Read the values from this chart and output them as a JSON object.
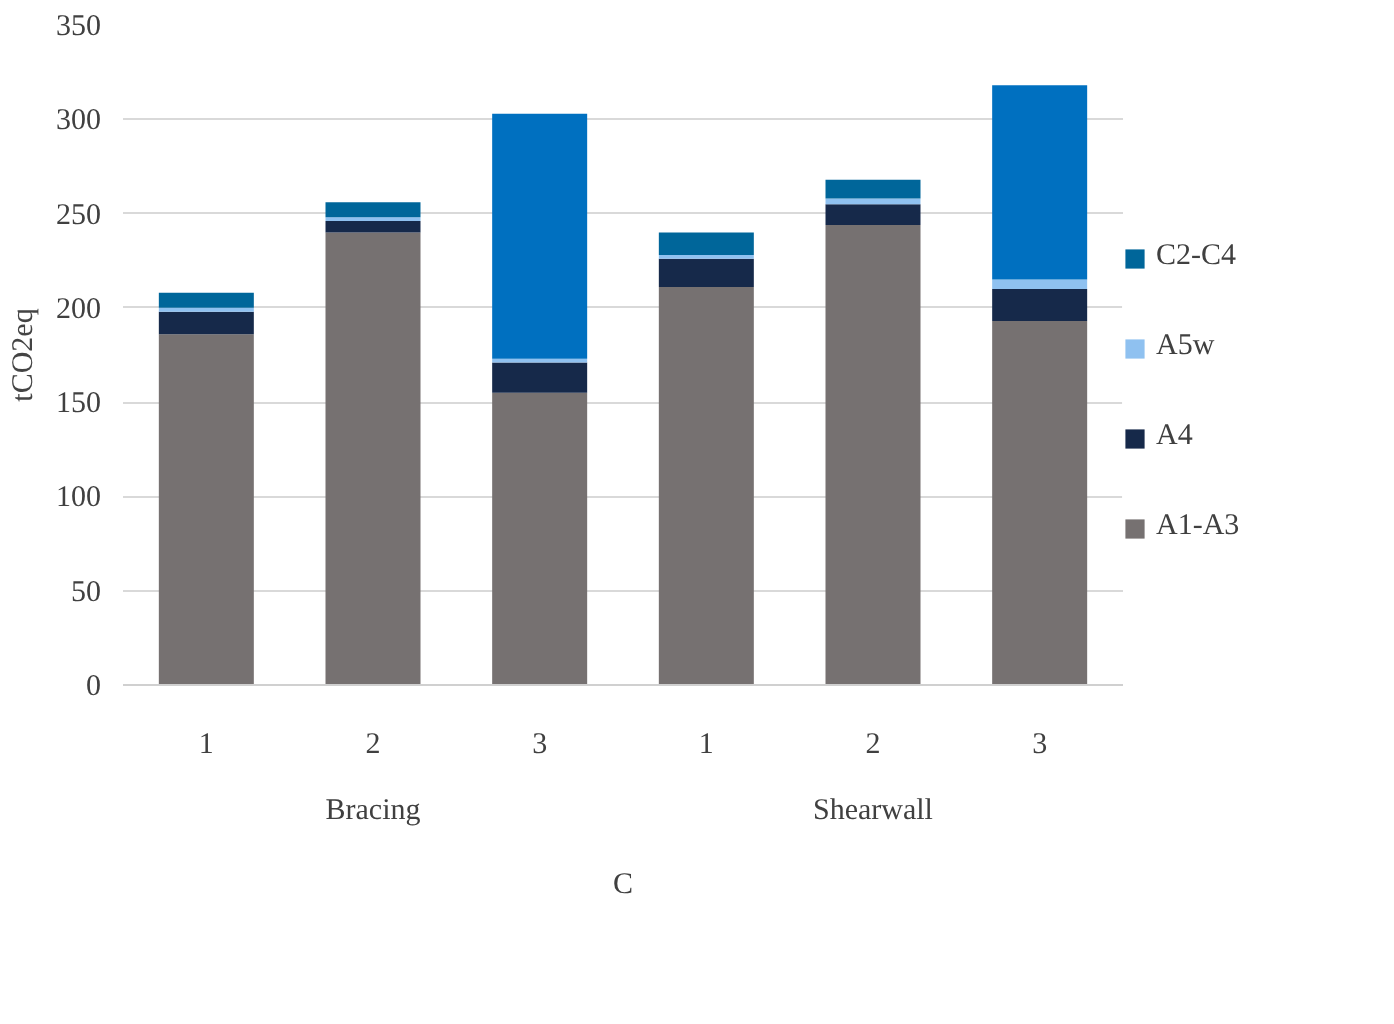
{
  "chart_data": {
    "type": "bar",
    "stacked": true,
    "ylabel": "tCO2eq",
    "xlabel": "C",
    "categories": [
      "1",
      "2",
      "3",
      "1",
      "2",
      "3"
    ],
    "annotations": [
      "Bracing",
      "Shearwall"
    ],
    "series": [
      {
        "name": "A1-A3",
        "color": "#767171",
        "values": [
          186,
          240,
          155,
          211,
          244,
          193
        ]
      },
      {
        "name": "A4",
        "color": "#16294a",
        "values": [
          12,
          6,
          16,
          15,
          11,
          17
        ]
      },
      {
        "name": "A5w",
        "color": "#8fc1f0",
        "values": [
          2,
          2,
          2,
          2,
          3,
          5
        ]
      },
      {
        "name": "C2-C4",
        "color": "#00669a",
        "colors": [
          "#00669a",
          "#00669a",
          "#0070c0",
          "#00669a",
          "#00669a",
          "#0070c0"
        ],
        "values": [
          8,
          8,
          130,
          12,
          10,
          103
        ]
      }
    ],
    "ylim": [
      0,
      350
    ],
    "yticks": [
      0,
      50,
      100,
      150,
      200,
      250,
      300,
      350
    ],
    "grid": "y",
    "legend": "right"
  }
}
